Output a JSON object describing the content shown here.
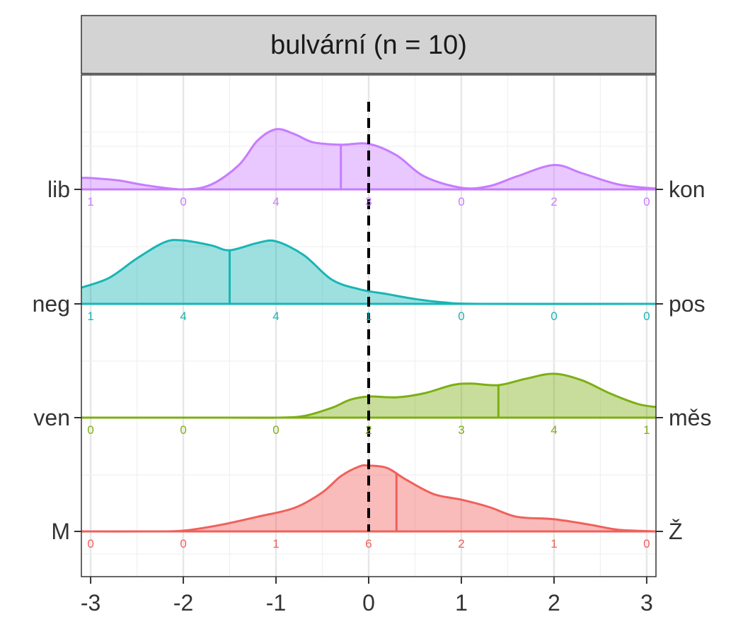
{
  "chart_data": {
    "type": "ridgeline",
    "panel_title": "bulvární (n = 10)",
    "xlim": [
      -3.1,
      3.1
    ],
    "x_ticks": [
      -3,
      -2,
      -1,
      0,
      1,
      2,
      3
    ],
    "x_tick_labels": [
      "-3",
      "-2",
      "-1",
      "0",
      "1",
      "2",
      "3"
    ],
    "reference_line_x": 0,
    "grid": true,
    "series": [
      {
        "left_label": "lib",
        "right_label": "kon",
        "color": "#c77cff",
        "mean": -0.3,
        "density": [
          [
            -3.1,
            0.14
          ],
          [
            -3,
            0.14
          ],
          [
            -2.7,
            0.11
          ],
          [
            -2.4,
            0.05
          ],
          [
            -2.0,
            0.0
          ],
          [
            -1.7,
            0.06
          ],
          [
            -1.4,
            0.3
          ],
          [
            -1.2,
            0.6
          ],
          [
            -1.0,
            0.74
          ],
          [
            -0.8,
            0.68
          ],
          [
            -0.6,
            0.58
          ],
          [
            -0.3,
            0.55
          ],
          [
            0,
            0.56
          ],
          [
            0.3,
            0.42
          ],
          [
            0.6,
            0.16
          ],
          [
            1.0,
            0.02
          ],
          [
            1.3,
            0.04
          ],
          [
            1.6,
            0.16
          ],
          [
            2.0,
            0.3
          ],
          [
            2.3,
            0.2
          ],
          [
            2.7,
            0.06
          ],
          [
            3.1,
            0.01
          ]
        ],
        "counts": [
          {
            "x": -3,
            "label": "1"
          },
          {
            "x": -2,
            "label": "0"
          },
          {
            "x": -1,
            "label": "4"
          },
          {
            "x": 0,
            "label": "3"
          },
          {
            "x": 1,
            "label": "0"
          },
          {
            "x": 2,
            "label": "2"
          },
          {
            "x": 3,
            "label": "0"
          }
        ]
      },
      {
        "left_label": "neg",
        "right_label": "pos",
        "color": "#18b5b5",
        "mean": -1.5,
        "density": [
          [
            -3.1,
            0.2
          ],
          [
            -2.8,
            0.32
          ],
          [
            -2.5,
            0.56
          ],
          [
            -2.2,
            0.76
          ],
          [
            -2.0,
            0.78
          ],
          [
            -1.7,
            0.72
          ],
          [
            -1.5,
            0.66
          ],
          [
            -1.2,
            0.75
          ],
          [
            -1.0,
            0.77
          ],
          [
            -0.7,
            0.6
          ],
          [
            -0.4,
            0.3
          ],
          [
            -0.1,
            0.18
          ],
          [
            0.2,
            0.12
          ],
          [
            0.5,
            0.06
          ],
          [
            0.8,
            0.02
          ],
          [
            1.2,
            0.0
          ],
          [
            3.1,
            0.0
          ]
        ],
        "counts": [
          {
            "x": -3,
            "label": "1"
          },
          {
            "x": -2,
            "label": "4"
          },
          {
            "x": -1,
            "label": "4"
          },
          {
            "x": 0,
            "label": "1"
          },
          {
            "x": 1,
            "label": "0"
          },
          {
            "x": 2,
            "label": "0"
          },
          {
            "x": 3,
            "label": "0"
          }
        ]
      },
      {
        "left_label": "ven",
        "right_label": "měs",
        "color": "#7caf12",
        "mean": 1.4,
        "density": [
          [
            -3.1,
            0.0
          ],
          [
            -1.5,
            0.0
          ],
          [
            -1.0,
            0.0
          ],
          [
            -0.7,
            0.02
          ],
          [
            -0.4,
            0.12
          ],
          [
            -0.2,
            0.22
          ],
          [
            0,
            0.26
          ],
          [
            0.3,
            0.25
          ],
          [
            0.6,
            0.3
          ],
          [
            0.9,
            0.4
          ],
          [
            1.1,
            0.42
          ],
          [
            1.4,
            0.4
          ],
          [
            1.7,
            0.48
          ],
          [
            2.0,
            0.54
          ],
          [
            2.3,
            0.46
          ],
          [
            2.6,
            0.3
          ],
          [
            2.9,
            0.17
          ],
          [
            3.1,
            0.13
          ]
        ],
        "counts": [
          {
            "x": -3,
            "label": "0"
          },
          {
            "x": -2,
            "label": "0"
          },
          {
            "x": -1,
            "label": "0"
          },
          {
            "x": 0,
            "label": "2"
          },
          {
            "x": 1,
            "label": "3"
          },
          {
            "x": 2,
            "label": "4"
          },
          {
            "x": 3,
            "label": "1"
          }
        ]
      },
      {
        "left_label": "M",
        "right_label": "Ž",
        "color": "#f0605b",
        "mean": 0.3,
        "density": [
          [
            -3.1,
            0.0
          ],
          [
            -2.4,
            0.0
          ],
          [
            -2.0,
            0.01
          ],
          [
            -1.6,
            0.08
          ],
          [
            -1.2,
            0.18
          ],
          [
            -0.8,
            0.29
          ],
          [
            -0.5,
            0.48
          ],
          [
            -0.3,
            0.68
          ],
          [
            -0.1,
            0.8
          ],
          [
            0,
            0.81
          ],
          [
            0.2,
            0.78
          ],
          [
            0.4,
            0.64
          ],
          [
            0.7,
            0.46
          ],
          [
            1.0,
            0.39
          ],
          [
            1.3,
            0.3
          ],
          [
            1.6,
            0.18
          ],
          [
            2.0,
            0.15
          ],
          [
            2.4,
            0.08
          ],
          [
            2.7,
            0.02
          ],
          [
            3.1,
            0.0
          ]
        ],
        "counts": [
          {
            "x": -3,
            "label": "0"
          },
          {
            "x": -2,
            "label": "0"
          },
          {
            "x": -1,
            "label": "1"
          },
          {
            "x": 0,
            "label": "6"
          },
          {
            "x": 1,
            "label": "2"
          },
          {
            "x": 2,
            "label": "1"
          },
          {
            "x": 3,
            "label": "0"
          }
        ]
      }
    ]
  }
}
